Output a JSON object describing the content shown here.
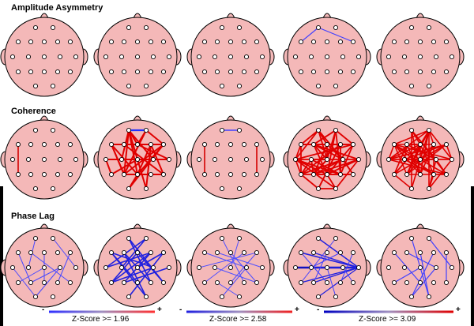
{
  "sections": [
    {
      "title": "Amplitude Asymmetry",
      "heads": [
        {
          "connections": []
        },
        {
          "connections": []
        },
        {
          "connections": []
        },
        {
          "connections": [
            {
              "from": "Fp1",
              "to": "F7",
              "color": "#4040ff",
              "width": 1.2
            },
            {
              "from": "Fp1",
              "to": "F8",
              "color": "#4040ff",
              "width": 1.2
            }
          ]
        },
        {
          "connections": []
        }
      ]
    },
    {
      "title": "Coherence",
      "heads": [
        {
          "connections": [
            {
              "from": "F7",
              "to": "T5",
              "color": "#d40000",
              "width": 1.6
            }
          ]
        },
        {
          "dense": {
            "seed": 11,
            "count": 34,
            "color": "#e00000",
            "width": 2
          },
          "connections": [
            {
              "from": "Fp1",
              "to": "Fp2",
              "color": "#2030ff",
              "width": 2.2
            }
          ]
        },
        {
          "connections": [
            {
              "from": "Fp1",
              "to": "Fp2",
              "color": "#4040ff",
              "width": 1.6
            },
            {
              "from": "F7",
              "to": "T5",
              "color": "#d40000",
              "width": 1.6
            },
            {
              "from": "F8",
              "to": "T6",
              "color": "#d40000",
              "width": 1.6
            }
          ]
        },
        {
          "dense": {
            "seed": 27,
            "count": 60,
            "color": "#e00000",
            "width": 1.8
          },
          "connections": []
        },
        {
          "dense": {
            "seed": 53,
            "count": 64,
            "color": "#e00000",
            "width": 1.6
          },
          "connections": []
        }
      ]
    },
    {
      "title": "Phase Lag",
      "heads": [
        {
          "connections": [
            {
              "from": "Fp1",
              "to": "C3",
              "color": "#4848ff",
              "width": 1
            },
            {
              "from": "F7",
              "to": "P3",
              "color": "#4848ff",
              "width": 1
            },
            {
              "from": "F3",
              "to": "T6",
              "color": "#4848ff",
              "width": 1
            },
            {
              "from": "Fp2",
              "to": "T4",
              "color": "#4848ff",
              "width": 1
            },
            {
              "from": "Pz",
              "to": "Fz",
              "color": "#4848ff",
              "width": 1
            },
            {
              "from": "T5",
              "to": "Cz",
              "color": "#4848ff",
              "width": 1
            },
            {
              "from": "C4",
              "to": "O1",
              "color": "#4848ff",
              "width": 1
            },
            {
              "from": "P3",
              "to": "C4",
              "color": "#4848ff",
              "width": 1
            },
            {
              "from": "F8",
              "to": "P4",
              "color": "#4848ff",
              "width": 1
            },
            {
              "from": "T3",
              "to": "O1",
              "color": "#4848ff",
              "width": 1
            }
          ]
        },
        {
          "connections": [
            {
              "from": "Fp1",
              "to": "T6",
              "color": "#2020e0",
              "width": 1.6
            },
            {
              "from": "F7",
              "to": "C4",
              "color": "#2020e0",
              "width": 1.6
            },
            {
              "from": "F3",
              "to": "O2",
              "color": "#2020e0",
              "width": 1.6
            },
            {
              "from": "Fp2",
              "to": "T3",
              "color": "#2020e0",
              "width": 1.6
            },
            {
              "from": "F4",
              "to": "P3",
              "color": "#2020e0",
              "width": 1.6
            },
            {
              "from": "F8",
              "to": "O1",
              "color": "#2020e0",
              "width": 1.6
            },
            {
              "from": "Fz",
              "to": "T5",
              "color": "#2020e0",
              "width": 1.6
            },
            {
              "from": "Cz",
              "to": "F8",
              "color": "#2020e0",
              "width": 1.6
            },
            {
              "from": "C3",
              "to": "Fp2",
              "color": "#2020e0",
              "width": 1.6
            },
            {
              "from": "T4",
              "to": "P3",
              "color": "#2020e0",
              "width": 1.6
            },
            {
              "from": "P4",
              "to": "F3",
              "color": "#2020e0",
              "width": 1.6
            },
            {
              "from": "Pz",
              "to": "F7",
              "color": "#2020e0",
              "width": 1.6
            },
            {
              "from": "T5",
              "to": "F4",
              "color": "#2020e0",
              "width": 1.6
            },
            {
              "from": "O2",
              "to": "F7",
              "color": "#2020e0",
              "width": 1.6
            },
            {
              "from": "C4",
              "to": "T5",
              "color": "#2020e0",
              "width": 1.6
            },
            {
              "from": "Fp1",
              "to": "P4",
              "color": "#2020e0",
              "width": 1.6
            },
            {
              "from": "T3",
              "to": "F4",
              "color": "#2020e0",
              "width": 1.6
            },
            {
              "from": "T6",
              "to": "Fz",
              "color": "#2020e0",
              "width": 1.6
            }
          ]
        },
        {
          "connections": [
            {
              "from": "F7",
              "to": "C4",
              "color": "#5050ff",
              "width": 1
            },
            {
              "from": "Fp1",
              "to": "P4",
              "color": "#5050ff",
              "width": 1
            },
            {
              "from": "T3",
              "to": "F8",
              "color": "#5050ff",
              "width": 1
            },
            {
              "from": "C3",
              "to": "T6",
              "color": "#5050ff",
              "width": 1
            },
            {
              "from": "F3",
              "to": "T4",
              "color": "#5050ff",
              "width": 1
            },
            {
              "from": "T5",
              "to": "F4",
              "color": "#5050ff",
              "width": 1
            },
            {
              "from": "P3",
              "to": "O2",
              "color": "#5050ff",
              "width": 1
            },
            {
              "from": "Fz",
              "to": "T6",
              "color": "#5050ff",
              "width": 1
            },
            {
              "from": "Cz",
              "to": "Fp2",
              "color": "#5050ff",
              "width": 1
            },
            {
              "from": "Pz",
              "to": "F8",
              "color": "#5050ff",
              "width": 1
            },
            {
              "from": "O1",
              "to": "C4",
              "color": "#5050ff",
              "width": 1
            }
          ]
        },
        {
          "connections": [
            {
              "from": "T3",
              "to": "T4",
              "color": "#1010c0",
              "width": 2.6
            },
            {
              "from": "F7",
              "to": "T4",
              "color": "#2020e0",
              "width": 1.6
            },
            {
              "from": "Fp1",
              "to": "T4",
              "color": "#2020e0",
              "width": 1.4
            },
            {
              "from": "F3",
              "to": "T4",
              "color": "#2020e0",
              "width": 1.4
            },
            {
              "from": "C3",
              "to": "T4",
              "color": "#2020e0",
              "width": 1.8
            },
            {
              "from": "T5",
              "to": "T4",
              "color": "#2020e0",
              "width": 1.4
            },
            {
              "from": "P3",
              "to": "T4",
              "color": "#2020e0",
              "width": 1.4
            },
            {
              "from": "O1",
              "to": "T4",
              "color": "#2020e0",
              "width": 1.2
            },
            {
              "from": "Fz",
              "to": "P3",
              "color": "#4040ff",
              "width": 1
            },
            {
              "from": "Fp2",
              "to": "T5",
              "color": "#4040ff",
              "width": 1
            },
            {
              "from": "F4",
              "to": "C3",
              "color": "#4040ff",
              "width": 1
            },
            {
              "from": "Cz",
              "to": "O2",
              "color": "#4040ff",
              "width": 1
            },
            {
              "from": "F8",
              "to": "P4",
              "color": "#4040ff",
              "width": 1
            },
            {
              "from": "Pz",
              "to": "F7",
              "color": "#4040ff",
              "width": 1
            },
            {
              "from": "T6",
              "to": "C4",
              "color": "#4040ff",
              "width": 1
            }
          ]
        },
        {
          "connections": [
            {
              "from": "Fp1",
              "to": "O2",
              "color": "#4040ff",
              "width": 1.2
            },
            {
              "from": "Fp2",
              "to": "T4",
              "color": "#4040ff",
              "width": 1.2
            },
            {
              "from": "F7",
              "to": "Pz",
              "color": "#4040ff",
              "width": 1.2
            },
            {
              "from": "F4",
              "to": "O1",
              "color": "#4040ff",
              "width": 1.2
            },
            {
              "from": "F8",
              "to": "T6",
              "color": "#4040ff",
              "width": 1.2
            },
            {
              "from": "Fz",
              "to": "O2",
              "color": "#4040ff",
              "width": 1.2
            },
            {
              "from": "Cz",
              "to": "T5",
              "color": "#4040ff",
              "width": 1.2
            },
            {
              "from": "F3",
              "to": "C4",
              "color": "#4040ff",
              "width": 1.2
            },
            {
              "from": "C4",
              "to": "O1",
              "color": "#4040ff",
              "width": 1.2
            }
          ]
        }
      ]
    }
  ],
  "legends": [
    {
      "label": "Z-Score >= 1.96",
      "minus": "-",
      "plus": "+",
      "neg_color": "#3030ff",
      "pos_color": "#ff3030"
    },
    {
      "label": "Z-Score >= 2.58",
      "minus": "-",
      "plus": "+",
      "neg_color": "#2020e0",
      "pos_color": "#f02020"
    },
    {
      "label": "Z-Score >= 3.09",
      "minus": "-",
      "plus": "+",
      "neg_color": "#0000c0",
      "pos_color": "#e00000"
    }
  ],
  "colors": {
    "head_fill": "#f4b8b8",
    "head_stroke": "#000000",
    "electrode_fill": "#ffffff",
    "electrode_stroke": "#000000"
  }
}
